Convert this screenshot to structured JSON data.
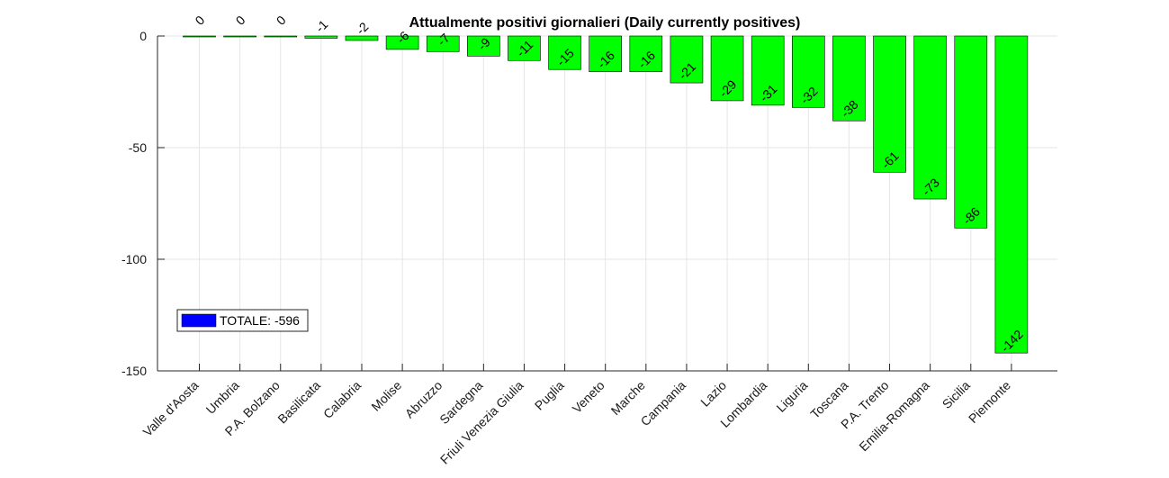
{
  "chart_data": {
    "type": "bar",
    "title": "Attualmente positivi giornalieri (Daily currently positives)",
    "xlabel": "",
    "ylabel": "",
    "categories": [
      "Valle d'Aosta",
      "Umbria",
      "P.A. Bolzano",
      "Basilicata",
      "Calabria",
      "Molise",
      "Abruzzo",
      "Sardegna",
      "Friuli Venezia Giulia",
      "Puglia",
      "Veneto",
      "Marche",
      "Campania",
      "Lazio",
      "Lombardia",
      "Liguria",
      "Toscana",
      "P.A. Trento",
      "Emilia-Romagna",
      "Sicilia",
      "Piemonte"
    ],
    "values": [
      0,
      0,
      0,
      -1,
      -2,
      -6,
      -7,
      -9,
      -11,
      -15,
      -16,
      -16,
      -21,
      -29,
      -31,
      -32,
      -38,
      -61,
      -73,
      -86,
      -142
    ],
    "ylim": [
      -150,
      0
    ],
    "yticks": [
      0,
      -50,
      -100,
      -150
    ],
    "grid": true,
    "bar_color": "#00ff00",
    "legend": {
      "placement": "bottom-left",
      "entries": [
        {
          "label": "TOTALE: -596",
          "color": "#0000ff"
        }
      ]
    }
  }
}
